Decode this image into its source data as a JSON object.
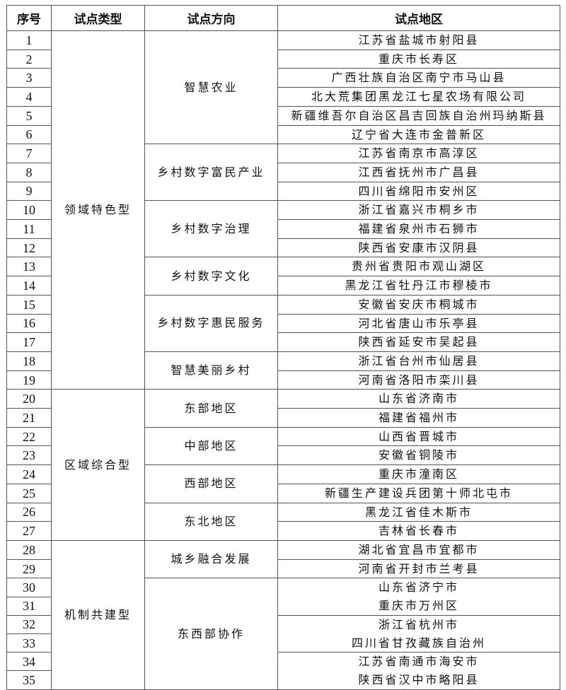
{
  "headers": [
    "序号",
    "试点类型",
    "试点方向",
    "试点地区"
  ],
  "types": [
    {
      "label": "领域特色型",
      "directions": [
        {
          "label": "智慧农业",
          "regions": [
            [
              "江苏省盐城市射阳县"
            ],
            [
              "重庆市长寿区"
            ],
            [
              "广西壮族自治区南宁市马山县"
            ],
            [
              "北大荒集团黑龙江七星农场有限公司"
            ],
            [
              "新疆维吾尔自治区昌吉回族自治州玛纳斯县"
            ],
            [
              "辽宁省大连市金普新区"
            ]
          ]
        },
        {
          "label": "乡村数字富民产业",
          "regions": [
            [
              "江苏省南京市高淳区"
            ],
            [
              "江西省抚州市广昌县"
            ],
            [
              "四川省绵阳市安州区"
            ]
          ]
        },
        {
          "label": "乡村数字治理",
          "regions": [
            [
              "浙江省嘉兴市桐乡市"
            ],
            [
              "福建省泉州市石狮市"
            ],
            [
              "陕西省安康市汉阴县"
            ]
          ]
        },
        {
          "label": "乡村数字文化",
          "regions": [
            [
              "贵州省贵阳市观山湖区"
            ],
            [
              "黑龙江省牡丹江市穆棱市"
            ]
          ]
        },
        {
          "label": "乡村数字惠民服务",
          "regions": [
            [
              "安徽省安庆市桐城市"
            ],
            [
              "河北省唐山市乐亭县"
            ],
            [
              "陕西省延安市吴起县"
            ]
          ]
        },
        {
          "label": "智慧美丽乡村",
          "regions": [
            [
              "浙江省台州市仙居县"
            ],
            [
              "河南省洛阳市栾川县"
            ]
          ]
        }
      ]
    },
    {
      "label": "区域综合型",
      "directions": [
        {
          "label": "东部地区",
          "regions": [
            [
              "山东省济南市"
            ],
            [
              "福建省福州市"
            ]
          ]
        },
        {
          "label": "中部地区",
          "regions": [
            [
              "山西省晋城市"
            ],
            [
              "安徽省铜陵市"
            ]
          ]
        },
        {
          "label": "西部地区",
          "regions": [
            [
              "重庆市潼南区"
            ],
            [
              "新疆生产建设兵团第十师北屯市"
            ]
          ]
        },
        {
          "label": "东北地区",
          "regions": [
            [
              "黑龙江省佳木斯市"
            ],
            [
              "吉林省长春市"
            ]
          ]
        }
      ]
    },
    {
      "label": "机制共建型",
      "directions": [
        {
          "label": "城乡融合发展",
          "regions": [
            [
              "湖北省宜昌市宜都市"
            ],
            [
              "河南省开封市兰考县"
            ]
          ]
        },
        {
          "label": "东西部协作",
          "regions": [
            [
              "山东省济宁市",
              "重庆市万州区"
            ],
            [
              "浙江省杭州市",
              "四川省甘孜藏族自治州"
            ],
            [
              "江苏省南通市海安市",
              "陕西省汉中市略阳县"
            ]
          ]
        }
      ]
    }
  ]
}
